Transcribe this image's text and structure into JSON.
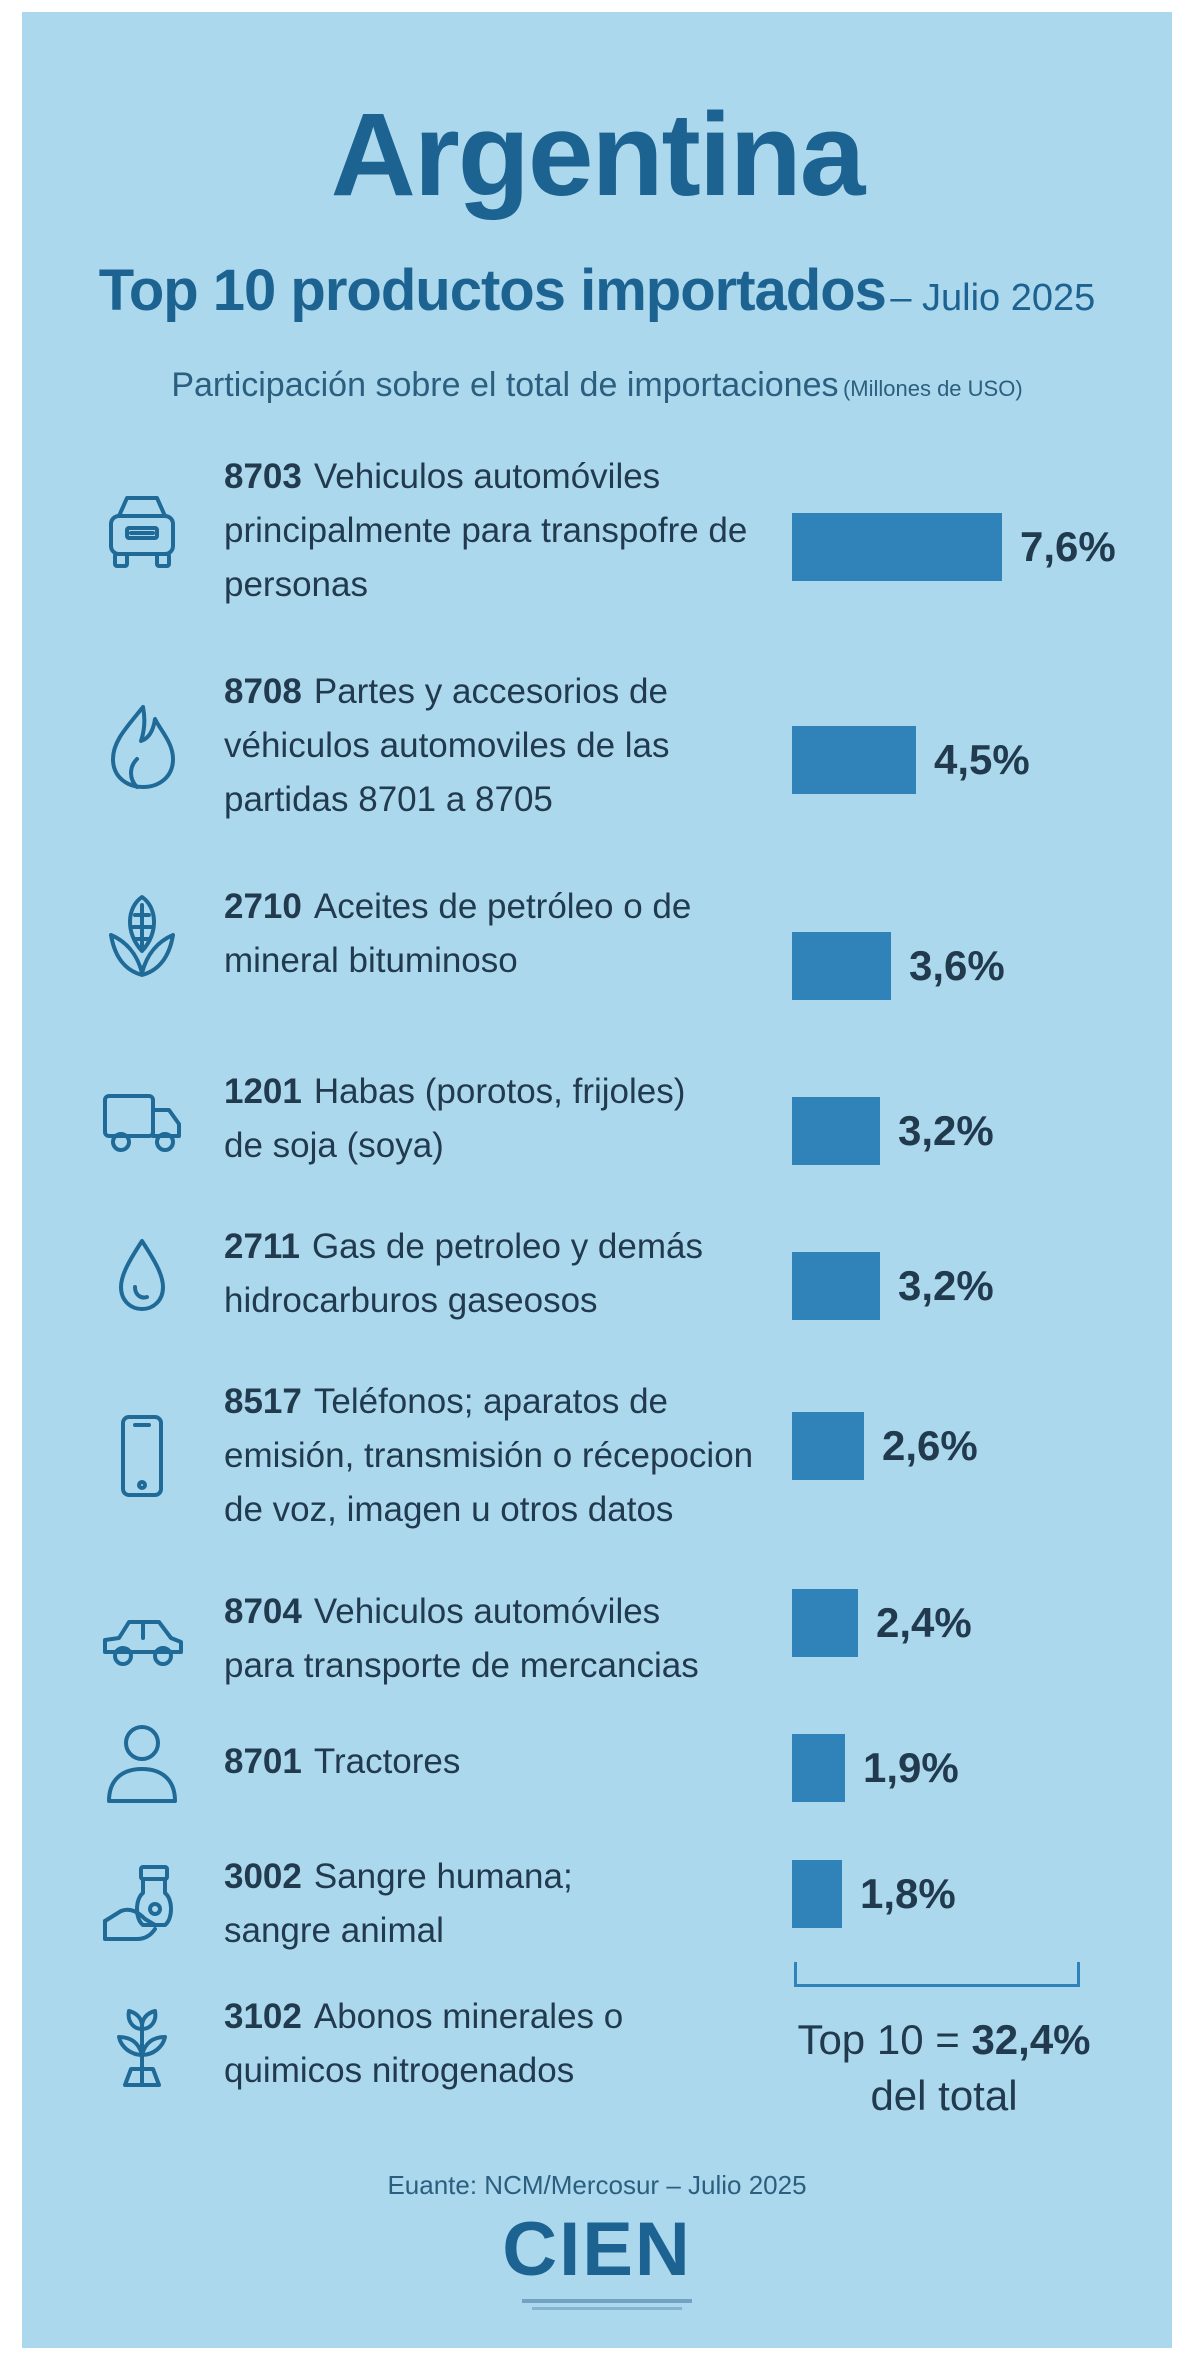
{
  "header": {
    "title": "Argentina",
    "subtitle": "Top 10 productos importados",
    "date": "– Julio 2025",
    "caption": "Participación sobre el total de importaciones",
    "unit": "(Millones de USO)"
  },
  "chart_data": {
    "type": "bar",
    "orientation": "horizontal",
    "value_unit": "%",
    "categories": [
      {
        "code": "8703",
        "lines": [
          "Vehiculos automóviles",
          "principalmente para transpofre de",
          "personas"
        ],
        "icon": "car-front-icon"
      },
      {
        "code": "8708",
        "lines": [
          "Partes y accesorios de",
          "véhiculos automoviles de las",
          "partidas 8701 a 8705"
        ],
        "icon": "flame-icon"
      },
      {
        "code": "2710",
        "lines": [
          "Aceites de petróleo o de",
          "mineral bituminoso"
        ],
        "icon": "corn-icon"
      },
      {
        "code": "1201",
        "lines": [
          "Habas (porotos, frijoles)",
          "de soja (soya)"
        ],
        "icon": "truck-icon"
      },
      {
        "code": "2711",
        "lines": [
          "Gas de petroleo y demás",
          "hidrocarburos gaseosos"
        ],
        "icon": "drop-icon"
      },
      {
        "code": "8517",
        "lines": [
          "Teléfonos; aparatos de",
          "emisión, transmisión  o récepocion",
          "de voz, imagen u otros datos"
        ],
        "icon": "phone-icon"
      },
      {
        "code": "8704",
        "lines": [
          "Vehiculos automóviles",
          "para transporte de mercancias"
        ],
        "icon": "car-side-icon"
      },
      {
        "code": "8701",
        "lines": [
          "Tractores"
        ],
        "icon": "person-icon"
      },
      {
        "code": "3002",
        "lines": [
          "Sangre humana;",
          "sangre animal"
        ],
        "icon": "hand-bottle-icon"
      },
      {
        "code": "3102",
        "lines": [
          "Abonos minerales o",
          "quimicos nitrogenados"
        ],
        "icon": "plant-icon"
      }
    ],
    "values": [
      7.6,
      4.5,
      3.6,
      3.2,
      3.2,
      2.6,
      2.4,
      1.9,
      1.8,
      null
    ],
    "value_labels": [
      "7,6%",
      "4,5%",
      "3,6%",
      "3,2%",
      "3,2%",
      "2,6%",
      "2,4%",
      "1,9%",
      "1,8%",
      ""
    ],
    "total_label": "Top 10 =",
    "total_value": "32,4%",
    "total_suffix": "del total"
  },
  "footer": {
    "source": "Euante: NCM/Mercosur – Julio 2025",
    "logo": "CIEN"
  },
  "colors": {
    "background": "#acd8ee",
    "bar": "#2f83b8",
    "title": "#1d6391",
    "text": "#213a4e"
  }
}
